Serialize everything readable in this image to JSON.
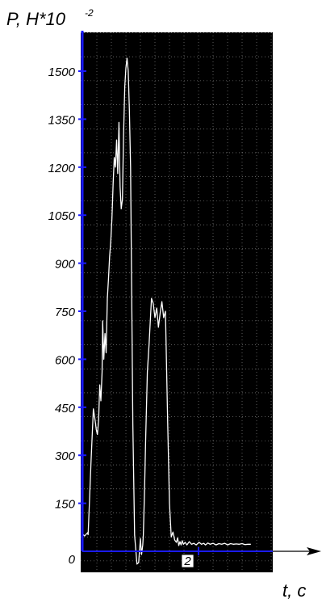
{
  "chart_data": {
    "type": "line",
    "ylabel": "P, H*10",
    "ylabel_exponent": "-2",
    "xlabel": "t, c",
    "x_tick_labels": [
      "2"
    ],
    "y_ticks": [
      0,
      150,
      300,
      450,
      600,
      750,
      900,
      1050,
      1200,
      1350,
      1500
    ],
    "y_tick_labels": [
      "0",
      "150",
      "300",
      "450",
      "600",
      "750",
      "900",
      "1050",
      "1200",
      "1350",
      "1500"
    ],
    "xlim": [
      0,
      2.9
    ],
    "ylim": [
      -40,
      1620
    ],
    "grid": true,
    "colors": {
      "plot_background": "#000000",
      "grid": "#9a9a9a",
      "line": "#ffffff",
      "axis": "#1a1aff",
      "arrow": "#000000"
    },
    "series": [
      {
        "x": [
          0,
          0.04,
          0.09,
          0.1,
          0.12,
          0.15,
          0.19,
          0.22,
          0.24,
          0.26,
          0.28,
          0.3,
          0.32,
          0.34,
          0.35,
          0.37,
          0.39,
          0.41,
          0.43,
          0.45,
          0.47,
          0.49,
          0.51,
          0.53,
          0.55,
          0.57,
          0.59,
          0.61,
          0.63,
          0.65,
          0.67,
          0.69,
          0.71,
          0.73,
          0.75,
          0.77,
          0.79,
          0.81,
          0.83,
          0.85,
          0.87,
          0.9,
          0.94,
          0.97,
          1.0,
          1.02,
          1.04,
          1.05,
          1.07,
          1.09,
          1.12,
          1.15,
          1.19,
          1.22,
          1.25,
          1.28,
          1.31,
          1.34,
          1.37,
          1.4,
          1.43,
          1.47,
          1.5,
          1.53,
          1.56,
          1.59,
          1.62,
          1.64,
          1.66,
          1.68,
          1.7,
          1.72,
          1.74,
          1.77,
          1.8,
          1.84,
          1.88,
          1.92,
          1.96,
          2.01,
          2.05,
          2.09,
          2.12,
          2.16,
          2.2,
          2.25,
          2.3,
          2.35,
          2.4,
          2.45,
          2.5,
          2.55,
          2.6,
          2.65,
          2.7,
          2.75,
          2.8,
          2.85,
          2.9
        ],
        "y": [
          55,
          48,
          58,
          52,
          140,
          280,
          445,
          410,
          380,
          365,
          410,
          520,
          470,
          560,
          720,
          600,
          680,
          620,
          790,
          850,
          920,
          970,
          1040,
          1150,
          1230,
          1200,
          1285,
          1180,
          1340,
          1140,
          1070,
          1100,
          1300,
          1450,
          1510,
          1540,
          1500,
          1380,
          1200,
          800,
          400,
          50,
          -40,
          -35,
          40,
          -10,
          20,
          50,
          180,
          350,
          560,
          650,
          790,
          775,
          730,
          760,
          700,
          745,
          780,
          730,
          750,
          400,
          150,
          45,
          60,
          35,
          28,
          42,
          18,
          30,
          20,
          33,
          22,
          28,
          20,
          30,
          22,
          25,
          20,
          28,
          22,
          25,
          20,
          26,
          22,
          25,
          20,
          24,
          22,
          25,
          20,
          24,
          22,
          23,
          22,
          24,
          21,
          22,
          22
        ]
      }
    ]
  }
}
